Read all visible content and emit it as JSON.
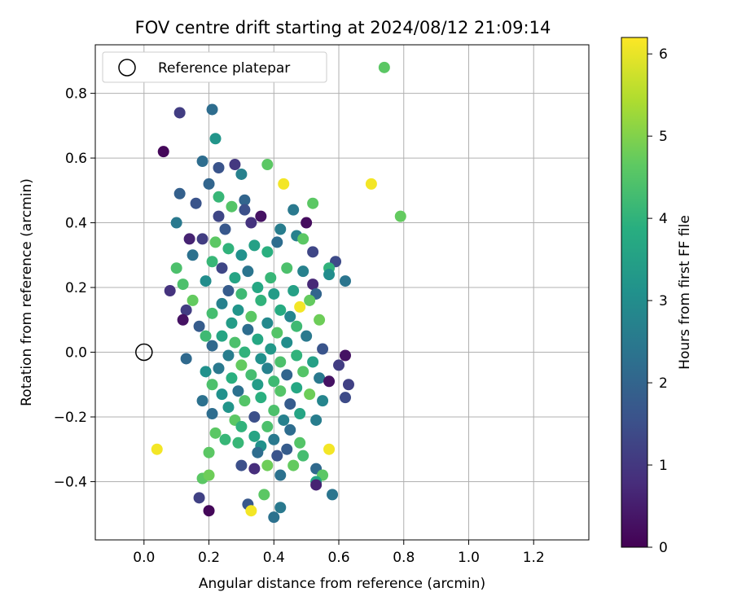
{
  "chart_data": {
    "type": "scatter",
    "title": "FOV centre drift starting at 2024/08/12 21:09:14",
    "xlabel": "Angular distance from reference (arcmin)",
    "ylabel": "Rotation from reference (arcmin)",
    "xlim": [
      -0.15,
      1.37
    ],
    "ylim": [
      -0.58,
      0.95
    ],
    "xticks": [
      "0.0",
      "0.2",
      "0.4",
      "0.6",
      "0.8",
      "1.0",
      "1.2"
    ],
    "xtick_values": [
      0.0,
      0.2,
      0.4,
      0.6,
      0.8,
      1.0,
      1.2
    ],
    "yticks": [
      "−0.4",
      "−0.2",
      "0.0",
      "0.2",
      "0.4",
      "0.6",
      "0.8"
    ],
    "ytick_values": [
      -0.4,
      -0.2,
      0.0,
      0.2,
      0.4,
      0.6,
      0.8
    ],
    "grid": true,
    "legend": {
      "placement": "upper-left",
      "entries": [
        "Reference platepar"
      ]
    },
    "reference_point": {
      "x": 0.0,
      "y": 0.0
    },
    "colorbar": {
      "label": "Hours from first FF file",
      "min": 0,
      "max": 6.2,
      "ticks": [
        "0",
        "1",
        "2",
        "3",
        "4",
        "5",
        "6"
      ],
      "tick_values": [
        0,
        1,
        2,
        3,
        4,
        5,
        6
      ],
      "colormap": "viridis"
    },
    "points_note": "points: [x arcmin, y arcmin, hours]",
    "points": [
      [
        0.74,
        0.88,
        4.6
      ],
      [
        0.11,
        0.74,
        1.1
      ],
      [
        0.21,
        0.75,
        2.2
      ],
      [
        0.22,
        0.66,
        3.2
      ],
      [
        0.06,
        0.62,
        0.1
      ],
      [
        0.18,
        0.59,
        2.2
      ],
      [
        0.28,
        0.58,
        1.0
      ],
      [
        0.38,
        0.58,
        4.6
      ],
      [
        0.23,
        0.57,
        1.6
      ],
      [
        0.3,
        0.55,
        2.7
      ],
      [
        0.43,
        0.52,
        6.1
      ],
      [
        0.7,
        0.52,
        6.1
      ],
      [
        0.2,
        0.52,
        2.0
      ],
      [
        0.11,
        0.49,
        1.9
      ],
      [
        0.23,
        0.48,
        4.1
      ],
      [
        0.31,
        0.47,
        2.0
      ],
      [
        0.16,
        0.46,
        1.6
      ],
      [
        0.52,
        0.46,
        4.6
      ],
      [
        0.27,
        0.45,
        4.5
      ],
      [
        0.31,
        0.44,
        1.5
      ],
      [
        0.46,
        0.44,
        2.5
      ],
      [
        0.79,
        0.42,
        4.7
      ],
      [
        0.36,
        0.42,
        0.3
      ],
      [
        0.5,
        0.4,
        0.2
      ],
      [
        0.1,
        0.4,
        2.5
      ],
      [
        0.23,
        0.42,
        1.3
      ],
      [
        0.25,
        0.38,
        1.7
      ],
      [
        0.42,
        0.38,
        2.6
      ],
      [
        0.33,
        0.4,
        0.9
      ],
      [
        0.18,
        0.35,
        1.1
      ],
      [
        0.22,
        0.34,
        4.6
      ],
      [
        0.47,
        0.36,
        2.7
      ],
      [
        0.49,
        0.35,
        4.6
      ],
      [
        0.14,
        0.35,
        0.6
      ],
      [
        0.26,
        0.32,
        4.0
      ],
      [
        0.34,
        0.33,
        3.5
      ],
      [
        0.41,
        0.34,
        2.2
      ],
      [
        0.52,
        0.31,
        1.3
      ],
      [
        0.15,
        0.3,
        2.3
      ],
      [
        0.3,
        0.3,
        3.1
      ],
      [
        0.38,
        0.31,
        3.9
      ],
      [
        0.59,
        0.28,
        1.4
      ],
      [
        0.21,
        0.28,
        4.1
      ],
      [
        0.1,
        0.26,
        4.4
      ],
      [
        0.44,
        0.26,
        4.4
      ],
      [
        0.57,
        0.26,
        4.0
      ],
      [
        0.24,
        0.26,
        1.3
      ],
      [
        0.49,
        0.25,
        2.7
      ],
      [
        0.32,
        0.25,
        2.4
      ],
      [
        0.57,
        0.24,
        3.0
      ],
      [
        0.28,
        0.23,
        3.6
      ],
      [
        0.39,
        0.23,
        4.1
      ],
      [
        0.12,
        0.21,
        4.4
      ],
      [
        0.52,
        0.21,
        0.7
      ],
      [
        0.62,
        0.22,
        2.4
      ],
      [
        0.19,
        0.22,
        3.0
      ],
      [
        0.35,
        0.2,
        3.7
      ],
      [
        0.08,
        0.19,
        0.9
      ],
      [
        0.46,
        0.19,
        3.5
      ],
      [
        0.26,
        0.19,
        1.8
      ],
      [
        0.3,
        0.18,
        4.2
      ],
      [
        0.53,
        0.18,
        2.0
      ],
      [
        0.4,
        0.18,
        3.4
      ],
      [
        0.15,
        0.16,
        4.7
      ],
      [
        0.24,
        0.15,
        2.7
      ],
      [
        0.36,
        0.16,
        4.0
      ],
      [
        0.51,
        0.16,
        4.7
      ],
      [
        0.13,
        0.13,
        1.1
      ],
      [
        0.48,
        0.14,
        6.1
      ],
      [
        0.29,
        0.13,
        3.2
      ],
      [
        0.42,
        0.13,
        3.8
      ],
      [
        0.21,
        0.12,
        4.3
      ],
      [
        0.33,
        0.11,
        4.6
      ],
      [
        0.45,
        0.11,
        2.8
      ],
      [
        0.12,
        0.1,
        0.3
      ],
      [
        0.54,
        0.1,
        4.8
      ],
      [
        0.27,
        0.09,
        3.4
      ],
      [
        0.38,
        0.09,
        2.9
      ],
      [
        0.17,
        0.08,
        1.8
      ],
      [
        0.47,
        0.08,
        4.2
      ],
      [
        0.32,
        0.07,
        2.2
      ],
      [
        0.41,
        0.06,
        4.5
      ],
      [
        0.24,
        0.05,
        3.6
      ],
      [
        0.5,
        0.05,
        2.5
      ],
      [
        0.19,
        0.05,
        4.2
      ],
      [
        0.35,
        0.04,
        3.7
      ],
      [
        0.28,
        0.03,
        4.4
      ],
      [
        0.44,
        0.03,
        3.0
      ],
      [
        0.21,
        0.02,
        2.1
      ],
      [
        0.39,
        0.01,
        3.3
      ],
      [
        0.55,
        0.01,
        1.6
      ],
      [
        0.31,
        0.0,
        4.0
      ],
      [
        0.47,
        -0.01,
        4.0
      ],
      [
        0.26,
        -0.01,
        2.6
      ],
      [
        0.62,
        -0.01,
        0.3
      ],
      [
        0.36,
        -0.02,
        3.1
      ],
      [
        0.13,
        -0.02,
        2.1
      ],
      [
        0.42,
        -0.03,
        4.4
      ],
      [
        0.52,
        -0.03,
        3.5
      ],
      [
        0.3,
        -0.04,
        4.7
      ],
      [
        0.23,
        -0.05,
        2.5
      ],
      [
        0.6,
        -0.04,
        1.1
      ],
      [
        0.38,
        -0.05,
        2.7
      ],
      [
        0.49,
        -0.06,
        4.5
      ],
      [
        0.19,
        -0.06,
        3.1
      ],
      [
        0.33,
        -0.07,
        4.3
      ],
      [
        0.44,
        -0.07,
        2.0
      ],
      [
        0.27,
        -0.08,
        3.9
      ],
      [
        0.54,
        -0.08,
        2.5
      ],
      [
        0.4,
        -0.09,
        4.2
      ],
      [
        0.57,
        -0.09,
        0.3
      ],
      [
        0.21,
        -0.1,
        4.4
      ],
      [
        0.35,
        -0.1,
        3.4
      ],
      [
        0.63,
        -0.1,
        1.2
      ],
      [
        0.47,
        -0.11,
        3.7
      ],
      [
        0.29,
        -0.12,
        2.3
      ],
      [
        0.42,
        -0.12,
        4.5
      ],
      [
        0.24,
        -0.13,
        3.1
      ],
      [
        0.51,
        -0.13,
        4.8
      ],
      [
        0.18,
        -0.15,
        2.3
      ],
      [
        0.36,
        -0.14,
        3.9
      ],
      [
        0.55,
        -0.15,
        2.8
      ],
      [
        0.31,
        -0.15,
        4.5
      ],
      [
        0.45,
        -0.16,
        1.8
      ],
      [
        0.62,
        -0.14,
        1.4
      ],
      [
        0.26,
        -0.17,
        3.2
      ],
      [
        0.4,
        -0.18,
        4.4
      ],
      [
        0.21,
        -0.19,
        2.2
      ],
      [
        0.48,
        -0.19,
        3.6
      ],
      [
        0.34,
        -0.2,
        1.5
      ],
      [
        0.28,
        -0.21,
        4.6
      ],
      [
        0.43,
        -0.21,
        2.7
      ],
      [
        0.53,
        -0.21,
        2.6
      ],
      [
        0.38,
        -0.23,
        4.4
      ],
      [
        0.3,
        -0.23,
        4.0
      ],
      [
        0.45,
        -0.24,
        2.2
      ],
      [
        0.22,
        -0.25,
        4.6
      ],
      [
        0.34,
        -0.26,
        3.6
      ],
      [
        0.4,
        -0.27,
        2.5
      ],
      [
        0.29,
        -0.28,
        4.1
      ],
      [
        0.48,
        -0.28,
        4.5
      ],
      [
        0.25,
        -0.27,
        4.1
      ],
      [
        0.36,
        -0.29,
        3.1
      ],
      [
        0.44,
        -0.3,
        1.8
      ],
      [
        0.04,
        -0.3,
        6.1
      ],
      [
        0.57,
        -0.3,
        6.1
      ],
      [
        0.2,
        -0.31,
        4.6
      ],
      [
        0.35,
        -0.31,
        2.2
      ],
      [
        0.41,
        -0.32,
        1.6
      ],
      [
        0.49,
        -0.32,
        4.3
      ],
      [
        0.3,
        -0.35,
        1.5
      ],
      [
        0.38,
        -0.35,
        4.8
      ],
      [
        0.46,
        -0.35,
        4.7
      ],
      [
        0.53,
        -0.36,
        2.1
      ],
      [
        0.34,
        -0.36,
        0.8
      ],
      [
        0.55,
        -0.38,
        4.6
      ],
      [
        0.42,
        -0.38,
        2.3
      ],
      [
        0.18,
        -0.39,
        4.6
      ],
      [
        0.2,
        -0.38,
        4.8
      ],
      [
        0.53,
        -0.4,
        3.6
      ],
      [
        0.53,
        -0.41,
        0.6
      ],
      [
        0.17,
        -0.45,
        1.2
      ],
      [
        0.37,
        -0.44,
        4.6
      ],
      [
        0.58,
        -0.44,
        2.4
      ],
      [
        0.32,
        -0.47,
        1.7
      ],
      [
        0.42,
        -0.48,
        2.5
      ],
      [
        0.2,
        -0.49,
        0.1
      ],
      [
        0.33,
        -0.49,
        6.1
      ],
      [
        0.4,
        -0.51,
        2.3
      ]
    ]
  }
}
